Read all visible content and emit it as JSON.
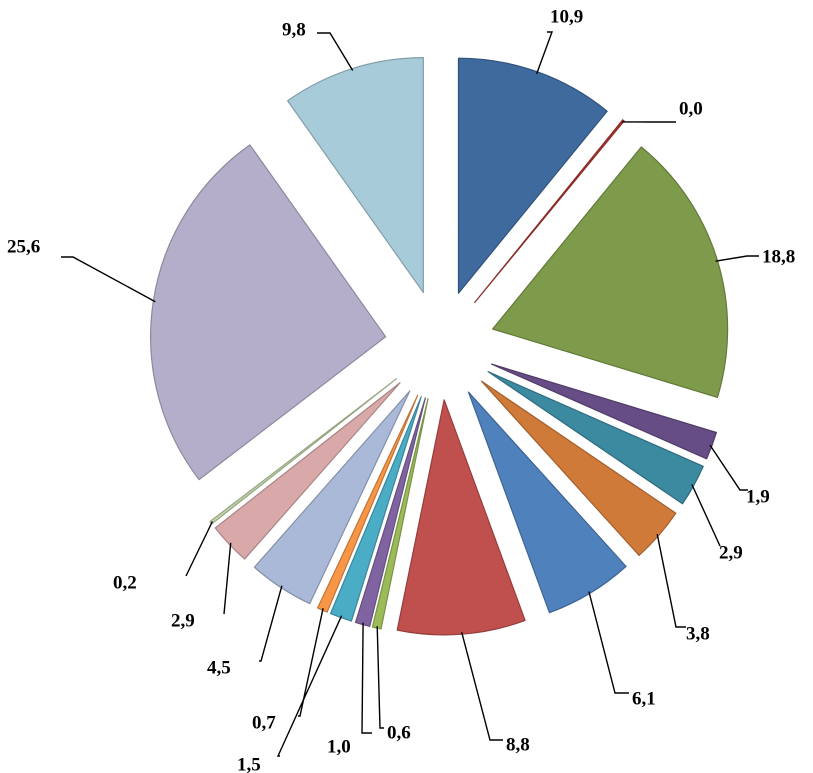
{
  "chart_data": {
    "type": "pie",
    "title": "",
    "legend": "none",
    "exploded": true,
    "slices": [
      {
        "value": 10.9,
        "label": "10,9",
        "color": "#3f6a9e"
      },
      {
        "value": 0.0,
        "label": "0,0",
        "color": "#b13a35"
      },
      {
        "value": 18.8,
        "label": "18,8",
        "color": "#7d9b4a"
      },
      {
        "value": 1.9,
        "label": "1,9",
        "color": "#664d85"
      },
      {
        "value": 2.9,
        "label": "2,9",
        "color": "#3b8aa0"
      },
      {
        "value": 3.8,
        "label": "3,8",
        "color": "#d07a3a"
      },
      {
        "value": 6.1,
        "label": "6,1",
        "color": "#4f81bd"
      },
      {
        "value": 8.8,
        "label": "8,8",
        "color": "#c0504d"
      },
      {
        "value": 0.6,
        "label": "0,6",
        "color": "#9bbb59"
      },
      {
        "value": 1.0,
        "label": "1,0",
        "color": "#8064a2"
      },
      {
        "value": 1.5,
        "label": "1,5",
        "color": "#4bacc6"
      },
      {
        "value": 0.7,
        "label": "0,7",
        "color": "#f79646"
      },
      {
        "value": 4.5,
        "label": "4,5",
        "color": "#a9b9d7"
      },
      {
        "value": 2.9,
        "label": "2,9",
        "color": "#d9a9aa"
      },
      {
        "value": 0.2,
        "label": "0,2",
        "color": "#c3d5a9"
      },
      {
        "value": 25.6,
        "label": "25,6",
        "color": "#b5aeca"
      },
      {
        "value": 9.8,
        "label": "9,8",
        "color": "#a8cbd9"
      }
    ]
  }
}
